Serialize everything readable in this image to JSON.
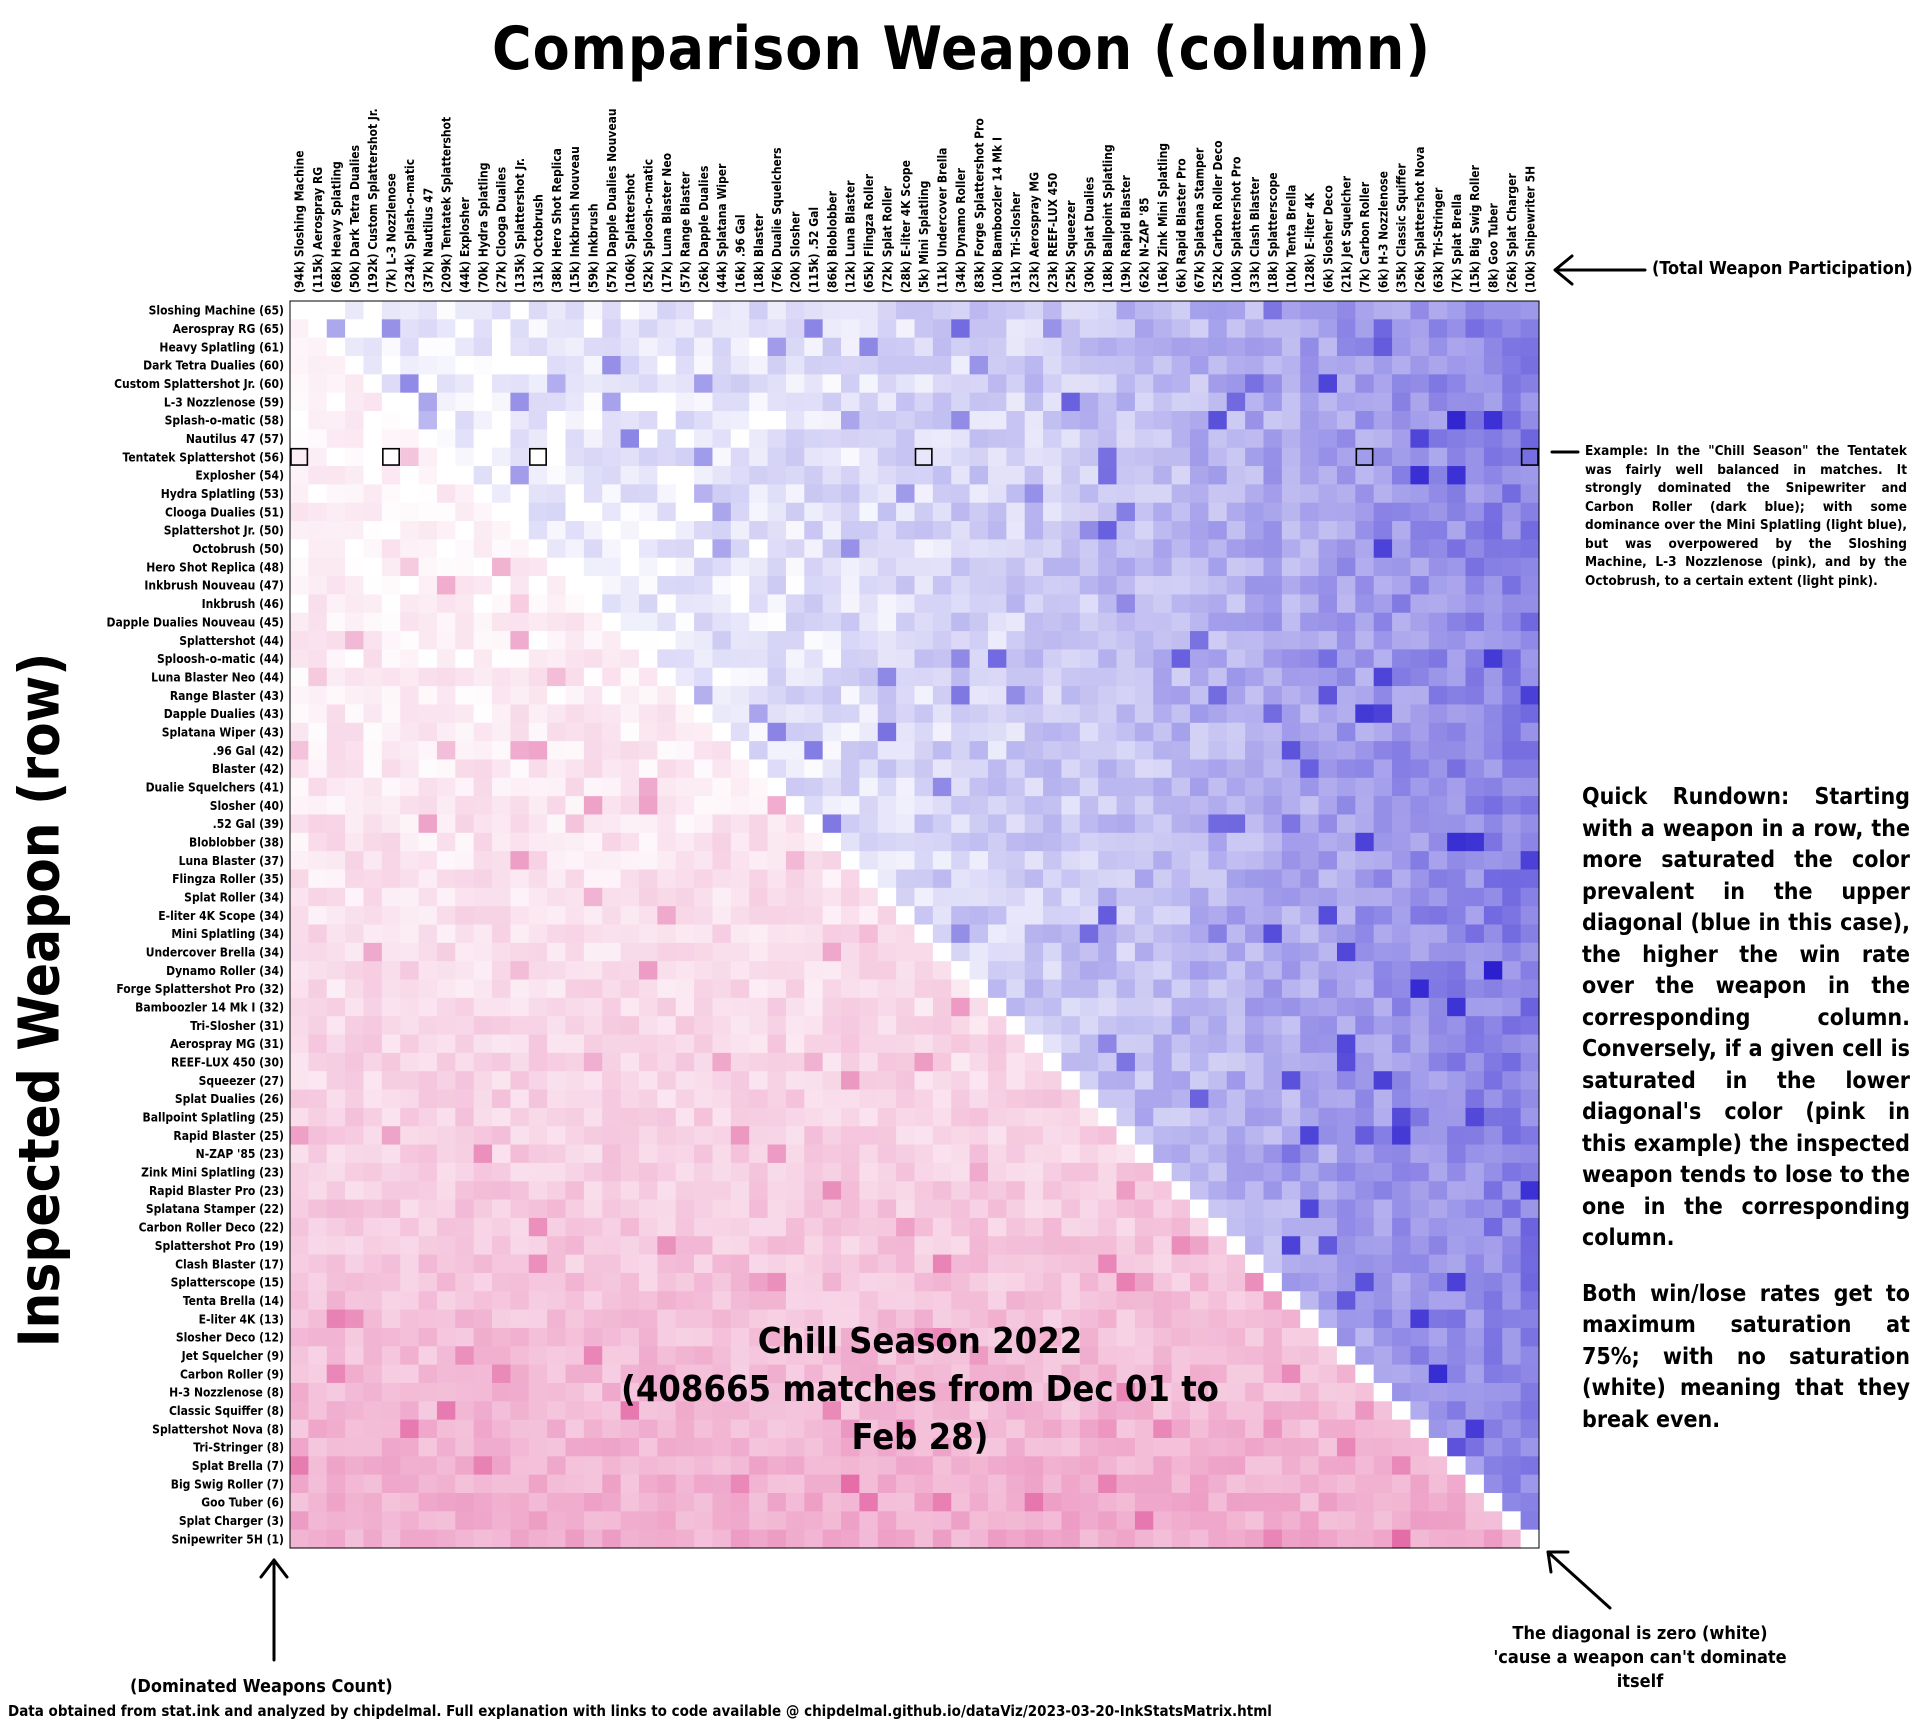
{
  "title": "Comparison Weapon (column)",
  "ylabel": "Inspected Weapon (row)",
  "subtitle_line1": "Chill Season 2022",
  "subtitle_line2": "(408665 matches from Dec 01 to Feb 28)",
  "annotations": {
    "total_participation": "(Total Weapon Participation)",
    "dominated_count": "(Dominated Weapons Count)",
    "diagonal_note": "The diagonal is zero (white) 'cause a weapon can't dominate itself",
    "example": "Example: In the \"Chill Season\" the Tentatek was fairly well balanced in matches. It strongly dominated the Snipewriter and Carbon Roller (dark blue); with some dominance over the Mini Splatling (light blue), but was overpowered by the Sloshing Machine, L-3 Nozzlenose (pink), and by the Octobrush, to a certain extent (light pink).",
    "rundown_p1": "Quick Rundown: Starting with a weapon in a row, the more saturated the color prevalent in the upper diagonal (blue in this case), the higher the win rate over the weapon in the corresponding column. Conversely, if a given cell is saturated in the lower diagonal's color (pink in this example) the inspected weapon tends to lose to the one in the corresponding column.",
    "rundown_p2": "Both win/lose rates get to maximum saturation at 75%; with no saturation (white) meaning that they break even.",
    "footer": "Data obtained from stat.ink and analyzed by chipdelmal. Full explanation with links to code available @ chipdelmal.github.io/dataViz/2023-03-20-InkStatsMatrix.html"
  },
  "chart_data": {
    "type": "heatmap",
    "upper_color": "#2b1fd0",
    "lower_color": "#e0559a",
    "max_saturation_rate": 0.75,
    "rows": [
      "Sloshing Machine (65)",
      "Aerospray RG (65)",
      "Heavy Splatling (61)",
      "Dark Tetra Dualies (60)",
      "Custom Splattershot Jr. (60)",
      "L-3 Nozzlenose (59)",
      "Splash-o-matic (58)",
      "Nautilus 47 (57)",
      "Tentatek Splattershot (56)",
      "Explosher (54)",
      "Hydra Splatling (53)",
      "Clooga Dualies (51)",
      "Splattershot Jr. (50)",
      "Octobrush (50)",
      "Hero Shot Replica (48)",
      "Inkbrush Nouveau (47)",
      "Inkbrush (46)",
      "Dapple Dualies Nouveau (45)",
      "Splattershot (44)",
      "Sploosh-o-matic (44)",
      "Luna Blaster Neo (44)",
      "Range Blaster (43)",
      "Dapple Dualies (43)",
      "Splatana Wiper (43)",
      ".96 Gal (42)",
      "Blaster (42)",
      "Dualie Squelchers (41)",
      "Slosher (40)",
      ".52 Gal (39)",
      "Bloblobber (38)",
      "Luna Blaster (37)",
      "Flingza Roller (35)",
      "Splat Roller (34)",
      "E-liter 4K Scope (34)",
      "Mini Splatling (34)",
      "Undercover Brella (34)",
      "Dynamo Roller (34)",
      "Forge Splattershot Pro (32)",
      "Bamboozler 14 Mk I (32)",
      "Tri-Slosher (31)",
      "Aerospray MG (31)",
      "REEF-LUX 450 (30)",
      "Squeezer (27)",
      "Splat Dualies (26)",
      "Ballpoint Splatling (25)",
      "Rapid Blaster (25)",
      "N-ZAP '85 (23)",
      "Zink Mini Splatling (23)",
      "Rapid Blaster Pro (23)",
      "Splatana Stamper (22)",
      "Carbon Roller Deco (22)",
      "Splattershot Pro (19)",
      "Clash Blaster (17)",
      "Splatterscope (15)",
      "Tenta Brella (14)",
      "E-liter 4K (13)",
      "Slosher Deco (12)",
      "Jet Squelcher (9)",
      "Carbon Roller (9)",
      "H-3 Nozzlenose (8)",
      "Classic Squiffer (8)",
      "Splattershot Nova (8)",
      "Tri-Stringer (8)",
      "Splat Brella (7)",
      "Big Swig Roller (7)",
      "Goo Tuber (6)",
      "Splat Charger (3)",
      "Snipewriter 5H (1)"
    ],
    "columns": [
      "(94k) Sloshing Machine",
      "(115k) Aerospray RG",
      "(68k) Heavy Splatling",
      "(50k) Dark Tetra Dualies",
      "(192k) Custom Splattershot Jr.",
      "(7k) L-3 Nozzlenose",
      "(234k) Splash-o-matic",
      "(37k) Nautilus 47",
      "(209k) Tentatek Splattershot",
      "(44k) Explosher",
      "(70k) Hydra Splatling",
      "(27k) Clooga Dualies",
      "(135k) Splattershot Jr.",
      "(31k) Octobrush",
      "(38k) Hero Shot Replica",
      "(15k) Inkbrush Nouveau",
      "(59k) Inkbrush",
      "(57k) Dapple Dualies Nouveau",
      "(106k) Splattershot",
      "(52k) Sploosh-o-matic",
      "(17k) Luna Blaster Neo",
      "(57k) Range Blaster",
      "(26k) Dapple Dualies",
      "(44k) Splatana Wiper",
      "(16k) .96 Gal",
      "(18k) Blaster",
      "(76k) Dualie Squelchers",
      "(20k) Slosher",
      "(115k) .52 Gal",
      "(86k) Bloblobber",
      "(12k) Luna Blaster",
      "(65k) Flingza Roller",
      "(72k) Splat Roller",
      "(28k) E-liter 4K Scope",
      "(5k) Mini Splatling",
      "(11k) Undercover Brella",
      "(34k) Dynamo Roller",
      "(83k) Forge Splattershot Pro",
      "(10k) Bamboozler 14 Mk I",
      "(31k) Tri-Slosher",
      "(23k) Aerospray MG",
      "(23k) REEF-LUX 450",
      "(25k) Squeezer",
      "(30k) Splat Dualies",
      "(18k) Ballpoint Splatling",
      "(19k) Rapid Blaster",
      "(62k) N-ZAP '85",
      "(16k) Zink Mini Splatling",
      "(6k) Rapid Blaster Pro",
      "(67k) Splatana Stamper",
      "(52k) Carbon Roller Deco",
      "(10k) Splattershot Pro",
      "(33k) Clash Blaster",
      "(18k) Splatterscope",
      "(10k) Tenta Brella",
      "(128k) E-liter 4K",
      "(6k) Slosher Deco",
      "(21k) Jet Squelcher",
      "(7k) Carbon Roller",
      "(6k) H-3 Nozzlenose",
      "(35k) Classic Squiffer",
      "(26k) Splattershot Nova",
      "(63k) Tri-Stringer",
      "(7k) Splat Brella",
      "(15k) Big Swig Roller",
      "(8k) Goo Tuber",
      "(26k) Splat Charger",
      "(10k) Snipewriter 5H"
    ],
    "highlight_row": 8,
    "highlight_cols": [
      0,
      5,
      13,
      34,
      58,
      67
    ]
  }
}
